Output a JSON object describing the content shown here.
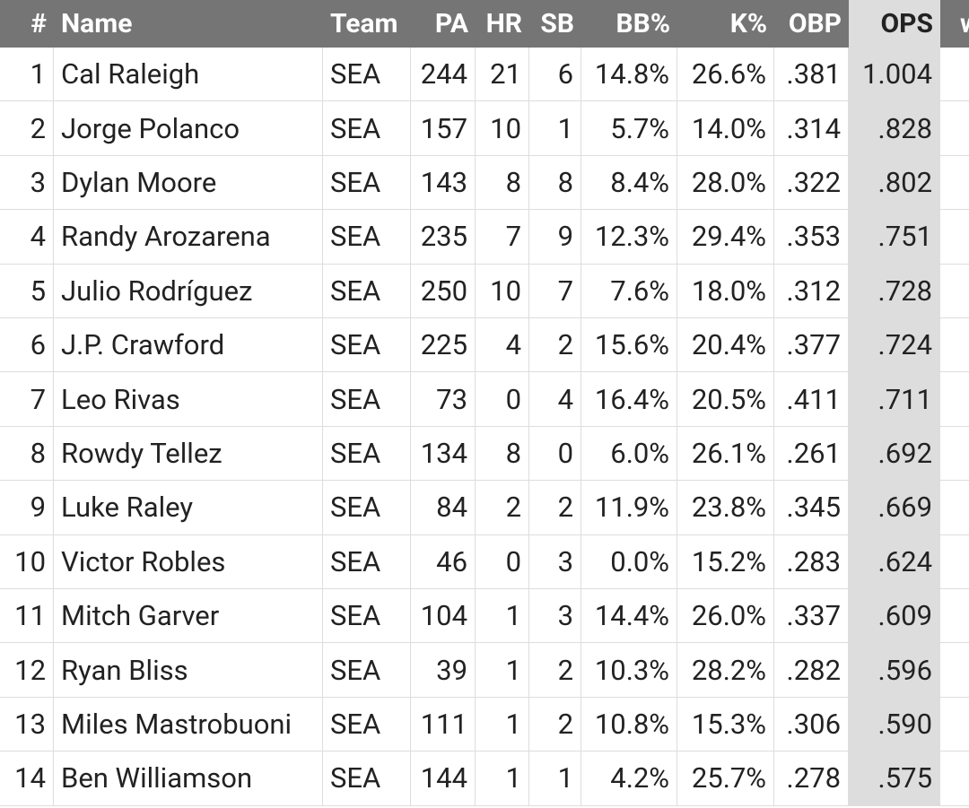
{
  "table": {
    "header": [
      "#",
      "Name",
      "Team",
      "PA",
      "HR",
      "SB",
      "BB%",
      "K%",
      "OBP",
      "OPS",
      "w"
    ],
    "rows": [
      [
        "1",
        "Cal Raleigh",
        "SEA",
        "244",
        "21",
        "6",
        "14.8%",
        "26.6%",
        ".381",
        "1.004",
        ""
      ],
      [
        "2",
        "Jorge Polanco",
        "SEA",
        "157",
        "10",
        "1",
        "5.7%",
        "14.0%",
        ".314",
        ".828",
        ""
      ],
      [
        "3",
        "Dylan Moore",
        "SEA",
        "143",
        "8",
        "8",
        "8.4%",
        "28.0%",
        ".322",
        ".802",
        ""
      ],
      [
        "4",
        "Randy Arozarena",
        "SEA",
        "235",
        "7",
        "9",
        "12.3%",
        "29.4%",
        ".353",
        ".751",
        ""
      ],
      [
        "5",
        "Julio Rodríguez",
        "SEA",
        "250",
        "10",
        "7",
        "7.6%",
        "18.0%",
        ".312",
        ".728",
        ""
      ],
      [
        "6",
        "J.P. Crawford",
        "SEA",
        "225",
        "4",
        "2",
        "15.6%",
        "20.4%",
        ".377",
        ".724",
        ""
      ],
      [
        "7",
        "Leo Rivas",
        "SEA",
        "73",
        "0",
        "4",
        "16.4%",
        "20.5%",
        ".411",
        ".711",
        ""
      ],
      [
        "8",
        "Rowdy Tellez",
        "SEA",
        "134",
        "8",
        "0",
        "6.0%",
        "26.1%",
        ".261",
        ".692",
        ""
      ],
      [
        "9",
        "Luke Raley",
        "SEA",
        "84",
        "2",
        "2",
        "11.9%",
        "23.8%",
        ".345",
        ".669",
        ""
      ],
      [
        "10",
        "Victor Robles",
        "SEA",
        "46",
        "0",
        "3",
        "0.0%",
        "15.2%",
        ".283",
        ".624",
        ""
      ],
      [
        "11",
        "Mitch Garver",
        "SEA",
        "104",
        "1",
        "3",
        "14.4%",
        "26.0%",
        ".337",
        ".609",
        ""
      ],
      [
        "12",
        "Ryan Bliss",
        "SEA",
        "39",
        "1",
        "2",
        "10.3%",
        "28.2%",
        ".282",
        ".596",
        ""
      ],
      [
        "13",
        "Miles Mastrobuoni",
        "SEA",
        "111",
        "1",
        "2",
        "10.8%",
        "15.3%",
        ".306",
        ".590",
        ""
      ],
      [
        "14",
        "Ben Williamson",
        "SEA",
        "144",
        "1",
        "1",
        "4.2%",
        "25.7%",
        ".278",
        ".575",
        ""
      ]
    ]
  }
}
